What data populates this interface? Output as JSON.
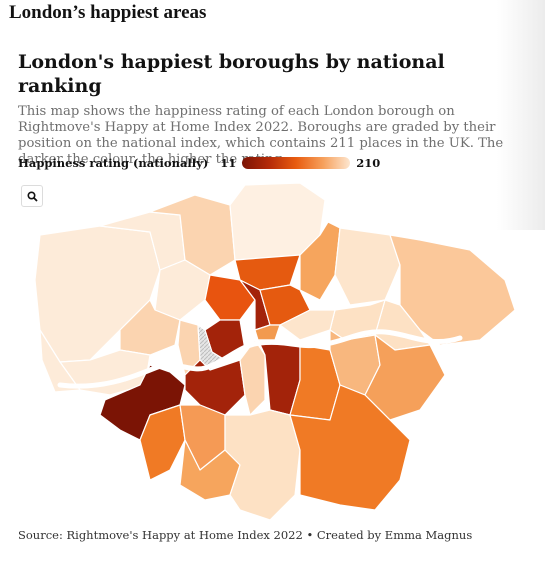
{
  "header": {
    "section_title": "London’s happiest areas"
  },
  "map": {
    "title": "London's happiest boroughs by national ranking",
    "description": "This map shows the happiness rating of each London borough on Rightmove's Happy at Home Index 2022. Boroughs are graded by their position on the national index, which contains 211 places in the UK. The darker the colour, the higher the rating.",
    "legend": {
      "label": "Happiness rating (nationally)",
      "min": "11",
      "max": "210",
      "color_low_rank": "#7b1405",
      "color_high_rank": "#fde6cf"
    },
    "zoom_icon": "search-icon",
    "no_data_fill": "hatched-grey",
    "source": "Source: Rightmove's Happy at Home Index 2022 • Created by Emma Magnus"
  }
}
